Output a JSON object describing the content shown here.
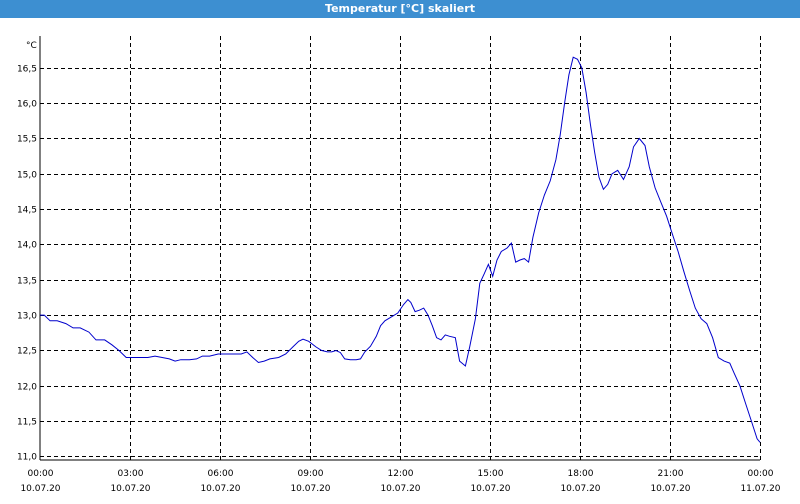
{
  "window": {
    "title": "Temperatur [°C] skaliert"
  },
  "colors": {
    "titlebar": "#3d8fd1",
    "series": "#0000cc",
    "grid": "#000000"
  },
  "chart_data": {
    "type": "line",
    "title": "Temperatur [°C] skaliert",
    "ylabel": "°C",
    "xlabel": "",
    "grid": true,
    "ylim": [
      10.95,
      16.95
    ],
    "xlim_hours": [
      0,
      24
    ],
    "yticks": [
      "11,0",
      "11,5",
      "12,0",
      "12,5",
      "13,0",
      "13,5",
      "14,0",
      "14,5",
      "15,0",
      "15,5",
      "16,0",
      "16,5"
    ],
    "xticks": [
      {
        "time": "00:00",
        "date": "10.07.20"
      },
      {
        "time": "03:00",
        "date": "10.07.20"
      },
      {
        "time": "06:00",
        "date": "10.07.20"
      },
      {
        "time": "09:00",
        "date": "10.07.20"
      },
      {
        "time": "12:00",
        "date": "10.07.20"
      },
      {
        "time": "15:00",
        "date": "10.07.20"
      },
      {
        "time": "18:00",
        "date": "10.07.20"
      },
      {
        "time": "21:00",
        "date": "10.07.20"
      },
      {
        "time": "00:00",
        "date": "11.07.20"
      }
    ],
    "series": [
      {
        "points": [
          [
            0.0,
            13.0
          ],
          [
            0.15,
            13.0
          ],
          [
            0.35,
            12.92
          ],
          [
            0.6,
            12.92
          ],
          [
            0.9,
            12.88
          ],
          [
            1.15,
            12.82
          ],
          [
            1.4,
            12.82
          ],
          [
            1.7,
            12.76
          ],
          [
            1.95,
            12.65
          ],
          [
            2.25,
            12.65
          ],
          [
            2.5,
            12.58
          ],
          [
            2.75,
            12.5
          ],
          [
            3.0,
            12.4
          ],
          [
            3.2,
            12.4
          ],
          [
            3.5,
            12.4
          ],
          [
            3.75,
            12.4
          ],
          [
            4.0,
            12.42
          ],
          [
            4.25,
            12.4
          ],
          [
            4.5,
            12.38
          ],
          [
            4.7,
            12.35
          ],
          [
            4.9,
            12.37
          ],
          [
            5.2,
            12.37
          ],
          [
            5.45,
            12.38
          ],
          [
            5.65,
            12.42
          ],
          [
            5.9,
            12.42
          ],
          [
            6.2,
            12.45
          ],
          [
            6.5,
            12.45
          ],
          [
            6.8,
            12.45
          ],
          [
            7.0,
            12.45
          ],
          [
            7.2,
            12.48
          ],
          [
            7.4,
            12.4
          ],
          [
            7.6,
            12.33
          ],
          [
            7.8,
            12.35
          ],
          [
            8.0,
            12.38
          ],
          [
            8.3,
            12.4
          ],
          [
            8.55,
            12.45
          ],
          [
            8.8,
            12.55
          ],
          [
            9.0,
            12.63
          ],
          [
            9.15,
            12.66
          ],
          [
            9.35,
            12.63
          ],
          [
            9.6,
            12.55
          ],
          [
            9.8,
            12.5
          ],
          [
            10.0,
            12.48
          ],
          [
            10.15,
            12.48
          ],
          [
            10.3,
            12.5
          ],
          [
            10.45,
            12.47
          ],
          [
            10.6,
            12.38
          ],
          [
            10.8,
            12.37
          ],
          [
            11.0,
            12.37
          ],
          [
            11.15,
            12.38
          ],
          [
            11.3,
            12.48
          ],
          [
            11.5,
            12.56
          ],
          [
            11.7,
            12.7
          ],
          [
            11.85,
            12.85
          ],
          [
            12.0,
            12.92
          ],
          [
            12.2,
            12.97
          ],
          [
            12.45,
            13.03
          ],
          [
            12.65,
            13.15
          ],
          [
            12.8,
            13.22
          ],
          [
            12.9,
            13.18
          ],
          [
            13.05,
            13.05
          ],
          [
            13.2,
            13.07
          ],
          [
            13.35,
            13.1
          ],
          [
            13.5,
            13.0
          ],
          [
            13.65,
            12.85
          ],
          [
            13.8,
            12.68
          ],
          [
            13.95,
            12.65
          ],
          [
            14.1,
            12.72
          ],
          [
            14.25,
            12.7
          ],
          [
            14.45,
            12.68
          ],
          [
            14.6,
            12.35
          ],
          [
            14.8,
            12.28
          ],
          [
            14.95,
            12.55
          ],
          [
            15.15,
            12.95
          ],
          [
            15.3,
            13.45
          ],
          [
            15.45,
            13.58
          ],
          [
            15.6,
            13.72
          ],
          [
            15.75,
            13.55
          ],
          [
            15.9,
            13.78
          ],
          [
            16.05,
            13.9
          ],
          [
            16.25,
            13.95
          ],
          [
            16.4,
            14.02
          ],
          [
            16.55,
            13.75
          ],
          [
            16.7,
            13.78
          ],
          [
            16.85,
            13.8
          ],
          [
            17.0,
            13.75
          ],
          [
            17.15,
            14.1
          ],
          [
            17.35,
            14.45
          ],
          [
            17.55,
            14.7
          ],
          [
            17.75,
            14.9
          ],
          [
            17.95,
            15.2
          ],
          [
            18.1,
            15.55
          ],
          [
            18.25,
            16.0
          ],
          [
            18.4,
            16.4
          ],
          [
            18.55,
            16.65
          ],
          [
            18.7,
            16.62
          ],
          [
            18.85,
            16.5
          ],
          [
            19.0,
            16.15
          ],
          [
            19.15,
            15.7
          ],
          [
            19.3,
            15.3
          ],
          [
            19.45,
            14.95
          ],
          [
            19.6,
            14.78
          ],
          [
            19.75,
            14.85
          ],
          [
            19.9,
            15.0
          ],
          [
            20.1,
            15.05
          ],
          [
            20.3,
            14.92
          ],
          [
            20.5,
            15.1
          ],
          [
            20.65,
            15.38
          ],
          [
            20.85,
            15.5
          ],
          [
            21.05,
            15.4
          ],
          [
            21.2,
            15.1
          ],
          [
            21.4,
            14.8
          ],
          [
            21.6,
            14.6
          ],
          [
            21.8,
            14.4
          ],
          [
            22.0,
            14.15
          ],
          [
            22.2,
            13.9
          ],
          [
            22.4,
            13.62
          ],
          [
            22.6,
            13.35
          ],
          [
            22.8,
            13.1
          ],
          [
            23.0,
            12.95
          ],
          [
            23.2,
            12.88
          ],
          [
            23.4,
            12.68
          ],
          [
            23.6,
            12.4
          ],
          [
            23.8,
            12.35
          ],
          [
            24.0,
            12.32
          ],
          [
            24.15,
            12.18
          ],
          [
            24.35,
            12.0
          ],
          [
            24.55,
            11.75
          ],
          [
            24.75,
            11.5
          ],
          [
            24.95,
            11.25
          ],
          [
            25.05,
            11.2
          ]
        ]
      }
    ]
  }
}
